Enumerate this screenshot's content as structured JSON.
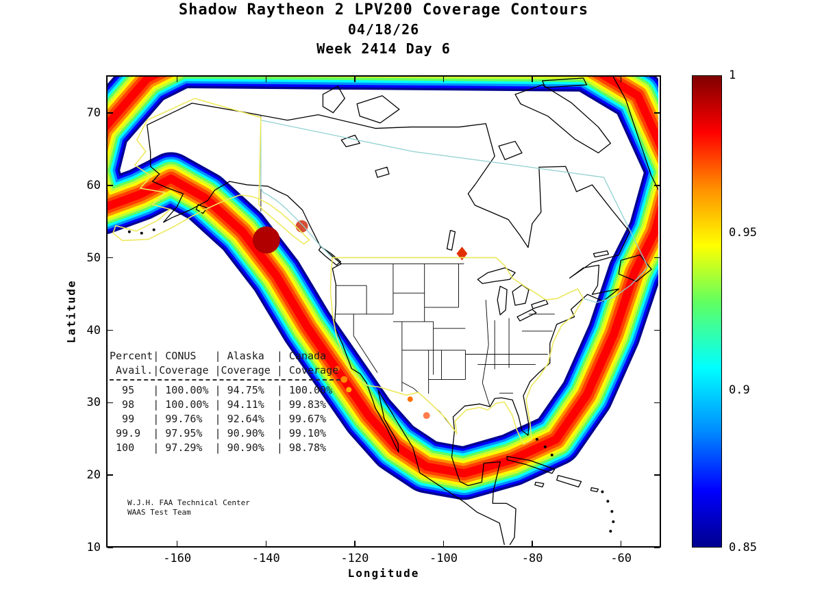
{
  "title": {
    "line1": "Shadow Raytheon 2 LPV200 Coverage Contours",
    "line2": "04/18/26",
    "line3": "Week 2414 Day 6"
  },
  "axes": {
    "x": {
      "label": "Longitude",
      "ticks": [
        -160,
        -140,
        -120,
        -100,
        -80,
        -60
      ],
      "range": [
        -176,
        -51
      ]
    },
    "y": {
      "label": "Latitude",
      "ticks": [
        70,
        60,
        50,
        40,
        30,
        20,
        10
      ],
      "range": [
        10,
        75.2
      ]
    }
  },
  "colorbar": {
    "min": 0.85,
    "max": 1,
    "tick_labels": [
      "1",
      "0.95",
      "0.9",
      "0.85"
    ],
    "gradient": [
      [
        "0%",
        "#7F0000"
      ],
      [
        "12%",
        "#FF0000"
      ],
      [
        "24%",
        "#FF9000"
      ],
      [
        "36%",
        "#FFFF00"
      ],
      [
        "48%",
        "#60FF60"
      ],
      [
        "62%",
        "#00FFFF"
      ],
      [
        "75%",
        "#0090FF"
      ],
      [
        "88%",
        "#0000FF"
      ],
      [
        "100%",
        "#00008F"
      ]
    ]
  },
  "availability_table": {
    "header_lines": [
      "Percent| CONUS   | Alaska  | Canada",
      " Avail.|Coverage |Coverage | Coverage"
    ],
    "row_lines": [
      "  95   | 100.00% | 94.75%  | 100.00%",
      "  98   | 100.00% | 94.11%  | 99.83%",
      "  99   | 99.76%  | 92.64%  | 99.67%",
      " 99.9  | 97.95%  | 90.90%  | 99.10%",
      " 100   | 97.29%  | 90.90%  | 98.78%"
    ],
    "columns": [
      "Percent Avail.",
      "CONUS Coverage",
      "Alaska Coverage",
      "Canada Coverage"
    ],
    "rows": [
      [
        "95",
        "100.00%",
        "94.75%",
        "100.00%"
      ],
      [
        "98",
        "100.00%",
        "94.11%",
        "99.83%"
      ],
      [
        "99",
        "99.76%",
        "92.64%",
        "99.67%"
      ],
      [
        "99.9",
        "97.95%",
        "90.90%",
        "99.10%"
      ],
      [
        "100",
        "97.29%",
        "90.90%",
        "98.78%"
      ]
    ]
  },
  "credit": {
    "line1": "W.J.H. FAA Technical Center",
    "line2": "WAAS Test Team"
  },
  "map_colors": {
    "interior": "#8A0000",
    "bands_outer_to_inner": [
      "#00008F",
      "#0000FF",
      "#0090FF",
      "#00FFFF",
      "#60FF60",
      "#C8FF30",
      "#FFFF00",
      "#FF9000",
      "#FF4000",
      "#FF0000"
    ],
    "conus_outline": "#EEE95C",
    "alaska_outline": "#EEE95C",
    "canada_outline": "#8FD0D0",
    "coastline": "#000000"
  },
  "chart_data": {
    "type": "heatmap",
    "subtype": "filled-contour-map",
    "title": "Shadow Raytheon 2 LPV200 Coverage Contours",
    "date": "04/18/26",
    "week": "2414",
    "day": "6",
    "xlabel": "Longitude",
    "ylabel": "Latitude",
    "xlim": [
      -176,
      -51
    ],
    "ylim": [
      10,
      75.2
    ],
    "xticks": [
      -160,
      -140,
      -120,
      -100,
      -80,
      -60
    ],
    "yticks": [
      70,
      60,
      50,
      40,
      30,
      20,
      10
    ],
    "value_range": [
      0.85,
      1
    ],
    "colorbar_ticks": [
      1,
      0.95,
      0.9,
      0.85
    ],
    "colormap": "jet",
    "regions": [
      "CONUS",
      "Alaska",
      "Canada"
    ],
    "availability": {
      "percent_avail": [
        95,
        98,
        99,
        99.9,
        100
      ],
      "conus_coverage": [
        "100.00%",
        "100.00%",
        "99.76%",
        "97.95%",
        "97.29%"
      ],
      "alaska_coverage": [
        "94.75%",
        "94.11%",
        "92.64%",
        "90.90%",
        "90.90%"
      ],
      "canada_coverage": [
        "100.00%",
        "99.83%",
        "99.67%",
        "99.10%",
        "98.78%"
      ]
    }
  }
}
